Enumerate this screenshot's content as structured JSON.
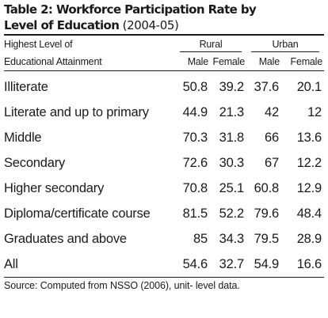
{
  "title": {
    "line1": "Table 2: Workforce Participation Rate by",
    "line2_bold": "Level of Education",
    "line2_year": " (2004-05)"
  },
  "header": {
    "col0_line1": "Highest Level of",
    "col0_line2": "Educational Attainment",
    "group_rural": "Rural",
    "group_urban": "Urban",
    "sub": [
      "Male",
      "Female",
      "Male",
      "Female"
    ]
  },
  "rows": [
    {
      "label": "Illiterate",
      "values": [
        "50.8",
        "39.2",
        "37.6",
        "20.1"
      ]
    },
    {
      "label": "Literate and up to primary",
      "values": [
        "44.9",
        "21.3",
        "42",
        "12"
      ]
    },
    {
      "label": "Middle",
      "values": [
        "70.3",
        "31.8",
        "66",
        "13.6"
      ]
    },
    {
      "label": "Secondary",
      "values": [
        "72.6",
        "30.3",
        "67",
        "12.2"
      ]
    },
    {
      "label": "Higher secondary",
      "values": [
        "70.8",
        "25.1",
        "60.8",
        "12.9"
      ]
    },
    {
      "label": "Diploma/certificate course",
      "values": [
        "81.5",
        "52.2",
        "79.6",
        "48.4"
      ]
    },
    {
      "label": "Graduates and above",
      "values": [
        "85",
        "34.3",
        "79.5",
        "28.9"
      ]
    },
    {
      "label": "All",
      "values": [
        "54.6",
        "32.7",
        "54.9",
        "16.6"
      ]
    }
  ],
  "source": "Source: Computed from NSSO (2006), unit- level data."
}
